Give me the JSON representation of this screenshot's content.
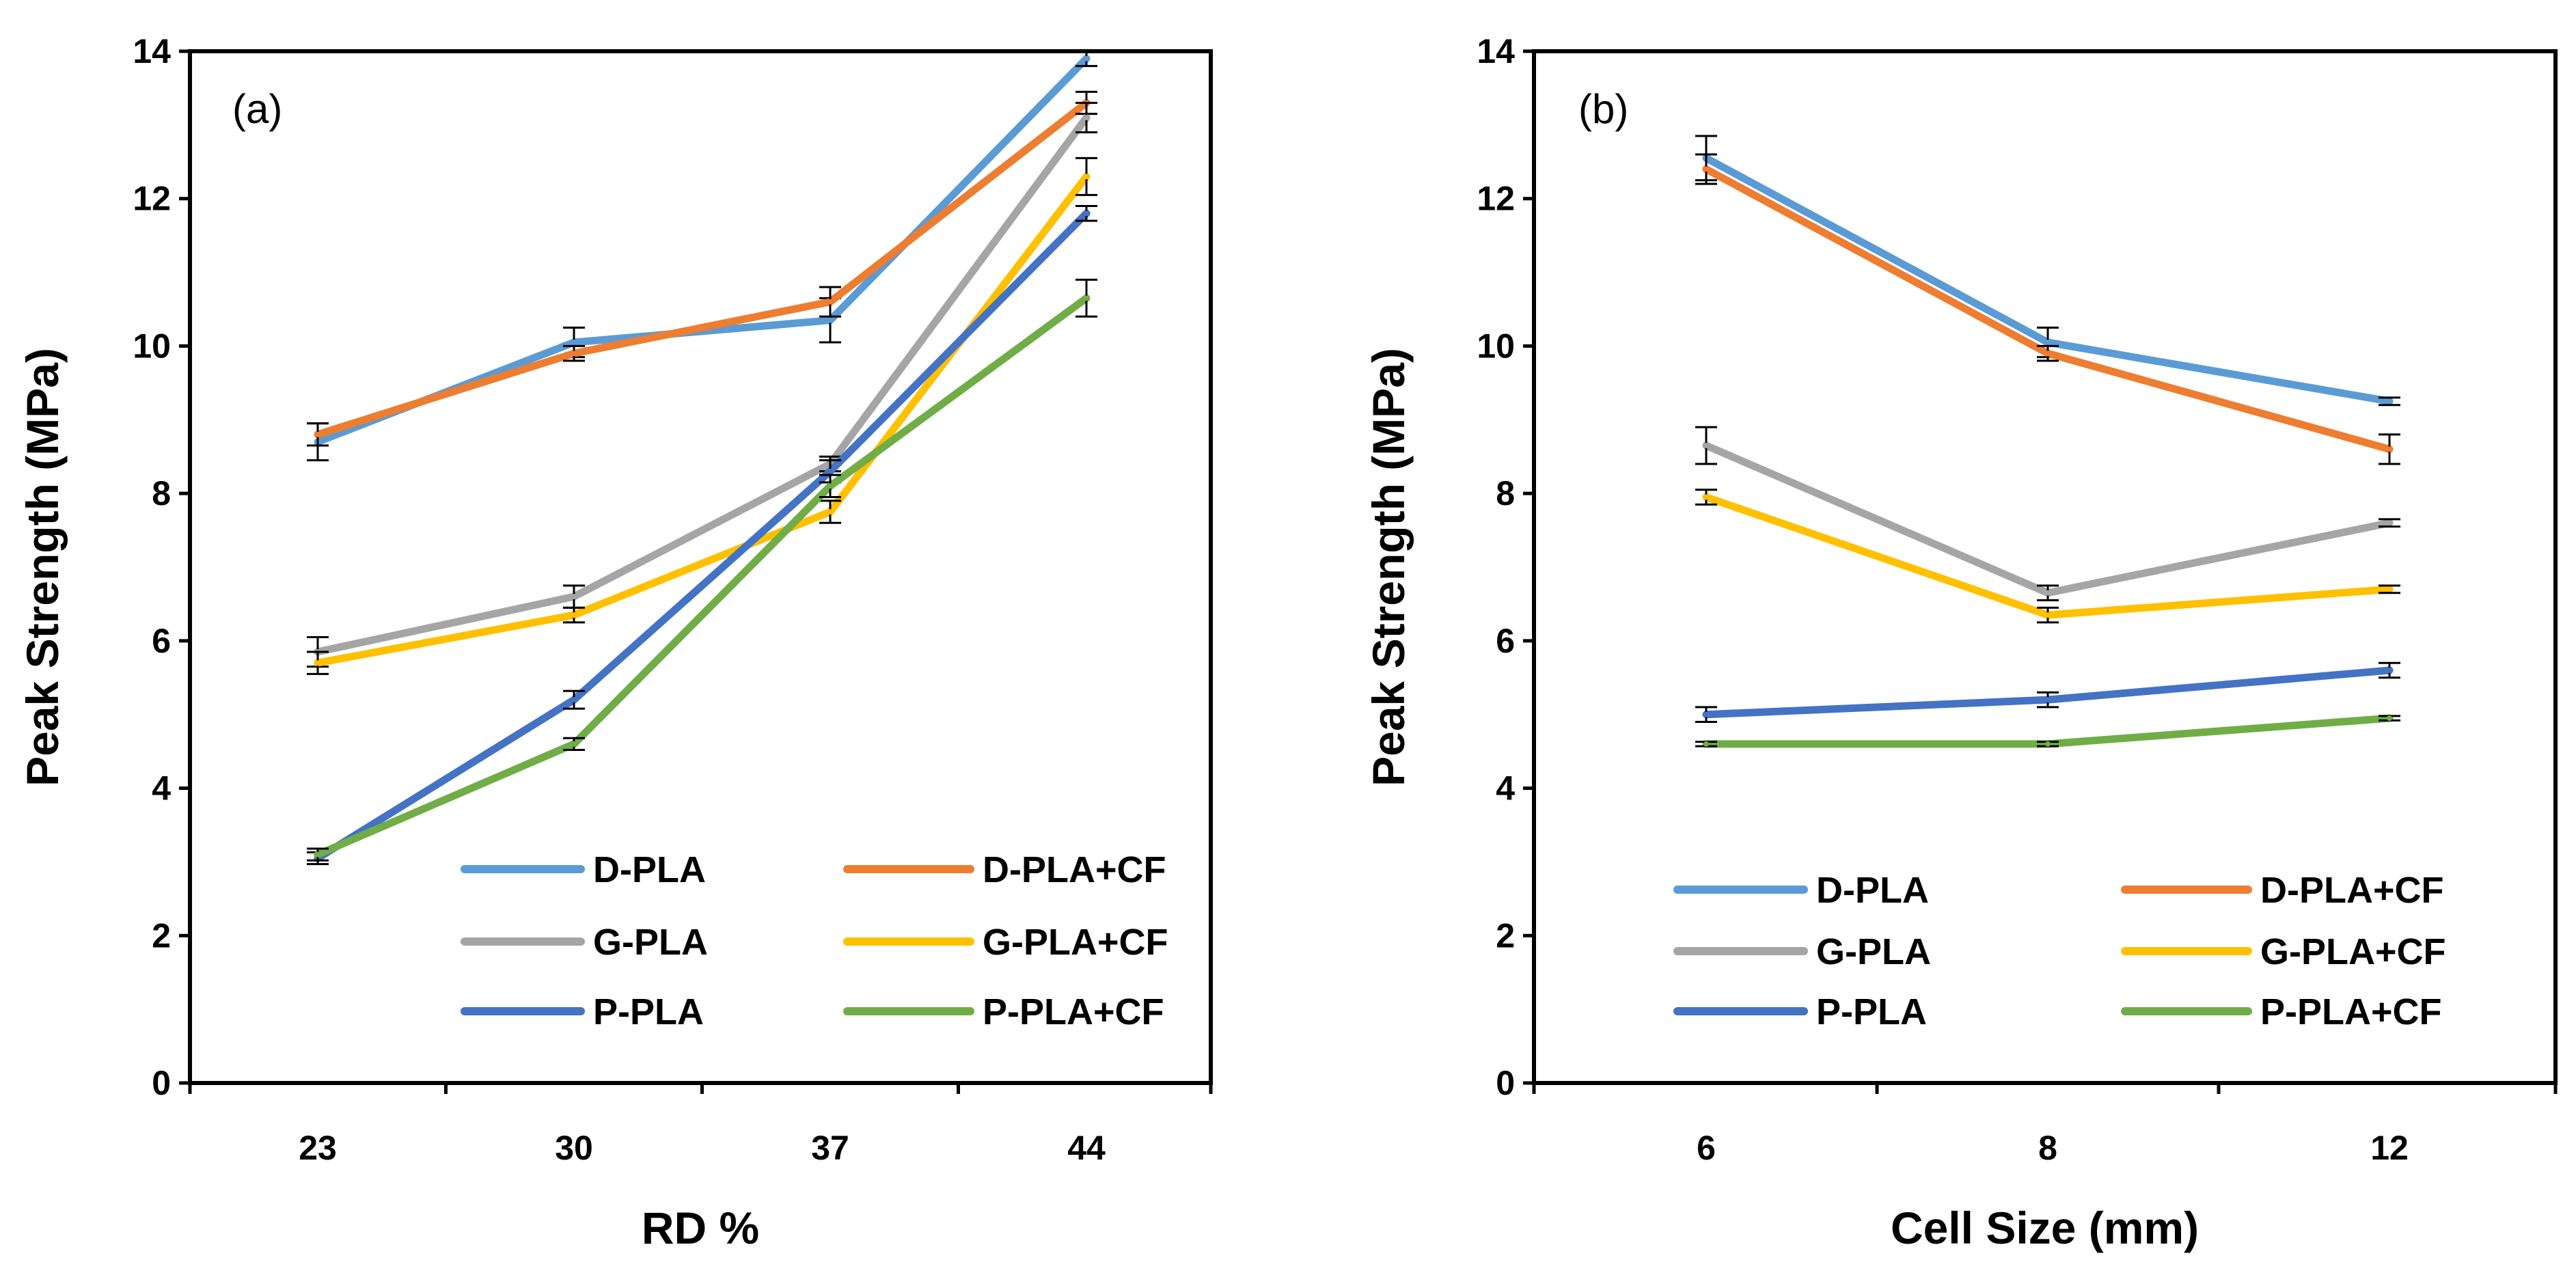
{
  "colors": {
    "D-PLA": "#5B9BD5",
    "D-PLA+CF": "#ED7D31",
    "G-PLA": "#A5A5A5",
    "G-PLA+CF": "#FFC000",
    "P-PLA": "#4472C4",
    "P-PLA+CF": "#70AD47"
  },
  "chart_data": [
    {
      "type": "line",
      "panel_label": "(a)",
      "xlabel": "RD %",
      "ylabel": "Peak Strength (MPa)",
      "categories": [
        "23",
        "30",
        "37",
        "44"
      ],
      "ylim": [
        0,
        14
      ],
      "yticks": [
        0,
        2,
        4,
        6,
        8,
        10,
        12,
        14
      ],
      "legend_placement": "bottom-right",
      "series": [
        {
          "name": "D-PLA",
          "values": [
            8.7,
            10.05,
            10.35,
            13.9
          ],
          "errors": [
            0.25,
            0.2,
            0.3,
            0.1
          ]
        },
        {
          "name": "D-PLA+CF",
          "values": [
            8.8,
            9.9,
            10.6,
            13.3
          ],
          "errors": [
            0.15,
            0.1,
            0.2,
            0.15
          ]
        },
        {
          "name": "G-PLA",
          "values": [
            5.85,
            6.6,
            8.4,
            13.1
          ],
          "errors": [
            0.2,
            0.15,
            0.1,
            0.2
          ]
        },
        {
          "name": "G-PLA+CF",
          "values": [
            5.7,
            6.35,
            7.75,
            12.3
          ],
          "errors": [
            0.15,
            0.1,
            0.15,
            0.25
          ]
        },
        {
          "name": "P-PLA",
          "values": [
            3.05,
            5.2,
            8.3,
            11.8
          ],
          "errors": [
            0.08,
            0.12,
            0.15,
            0.1
          ]
        },
        {
          "name": "P-PLA+CF",
          "values": [
            3.1,
            4.6,
            8.1,
            10.65
          ],
          "errors": [
            0.08,
            0.08,
            0.15,
            0.25
          ]
        }
      ]
    },
    {
      "type": "line",
      "panel_label": "(b)",
      "xlabel": "Cell Size (mm)",
      "ylabel": "Peak Strength (MPa)",
      "categories": [
        "6",
        "8",
        "12"
      ],
      "ylim": [
        0,
        14
      ],
      "yticks": [
        0,
        2,
        4,
        6,
        8,
        10,
        12,
        14
      ],
      "legend_placement": "bottom",
      "series": [
        {
          "name": "D-PLA",
          "values": [
            12.55,
            10.05,
            9.25
          ],
          "errors": [
            0.3,
            0.2,
            0.05
          ]
        },
        {
          "name": "D-PLA+CF",
          "values": [
            12.4,
            9.9,
            8.6
          ],
          "errors": [
            0.2,
            0.1,
            0.2
          ]
        },
        {
          "name": "G-PLA",
          "values": [
            8.65,
            6.65,
            7.6
          ],
          "errors": [
            0.25,
            0.1,
            0.05
          ]
        },
        {
          "name": "G-PLA+CF",
          "values": [
            7.95,
            6.35,
            6.7
          ],
          "errors": [
            0.1,
            0.1,
            0.05
          ]
        },
        {
          "name": "P-PLA",
          "values": [
            5.0,
            5.2,
            5.6
          ],
          "errors": [
            0.1,
            0.1,
            0.1
          ]
        },
        {
          "name": "P-PLA+CF",
          "values": [
            4.6,
            4.6,
            4.95
          ],
          "errors": [
            0.03,
            0.03,
            0.03
          ]
        }
      ]
    }
  ]
}
